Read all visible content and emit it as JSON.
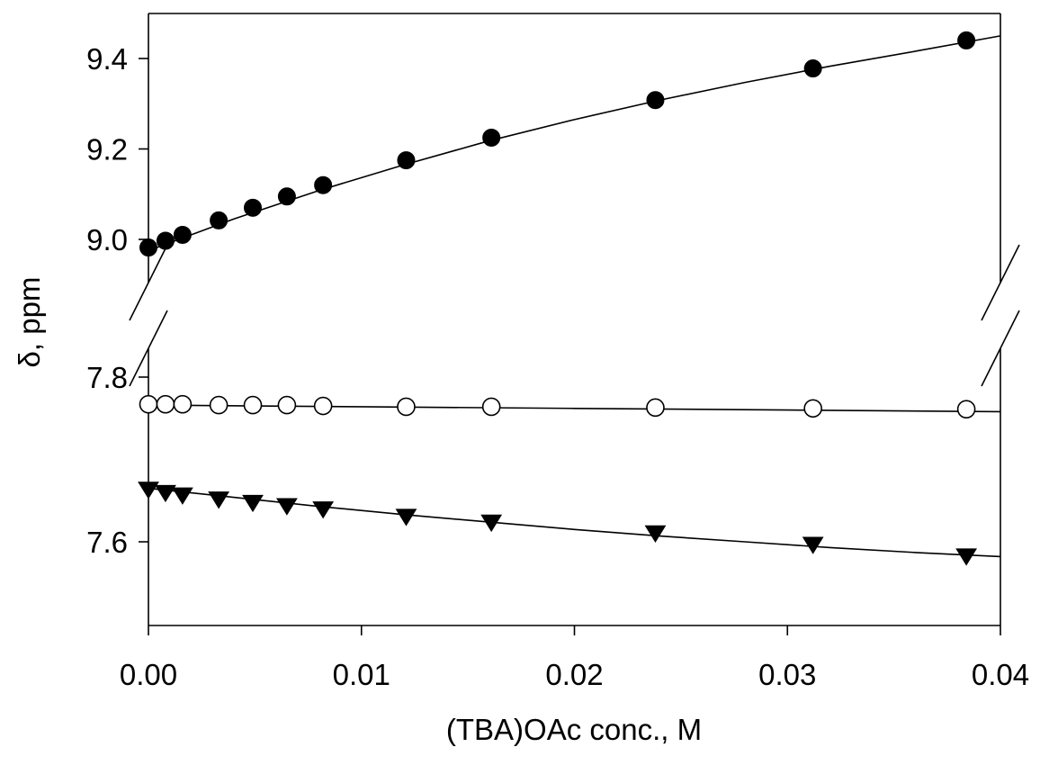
{
  "chart_data": {
    "type": "scatter",
    "xlabel": "(TBA)OAc conc., M",
    "ylabel": "δ, ppm",
    "xlim": [
      0.0,
      0.04
    ],
    "x_ticks": [
      "0.00",
      "0.01",
      "0.02",
      "0.03",
      "0.04"
    ],
    "y_broken_axis": true,
    "y_segments": [
      {
        "ylim": [
          8.9,
          9.47
        ],
        "ticks": [
          "9.0",
          "9.2",
          "9.4"
        ]
      },
      {
        "ylim": [
          7.49,
          7.86
        ],
        "ticks": [
          "7.6",
          "7.8"
        ]
      }
    ],
    "grid": false,
    "legend": "none",
    "x": [
      0.0,
      0.0008,
      0.0016,
      0.0033,
      0.0049,
      0.0065,
      0.0082,
      0.0121,
      0.0161,
      0.0238,
      0.0312,
      0.0384
    ],
    "series": [
      {
        "marker": "filled-circle",
        "values": [
          8.982,
          8.997,
          9.01,
          9.042,
          9.07,
          9.095,
          9.12,
          9.175,
          9.225,
          9.308,
          9.378,
          9.44
        ],
        "fit": [
          [
            0.0,
            8.975
          ],
          [
            0.004,
            9.045
          ],
          [
            0.008,
            9.108
          ],
          [
            0.012,
            9.165
          ],
          [
            0.016,
            9.218
          ],
          [
            0.02,
            9.265
          ],
          [
            0.024,
            9.308
          ],
          [
            0.028,
            9.347
          ],
          [
            0.032,
            9.383
          ],
          [
            0.036,
            9.416
          ],
          [
            0.04,
            9.45
          ]
        ]
      },
      {
        "marker": "open-circle",
        "values": [
          7.767,
          7.767,
          7.767,
          7.766,
          7.766,
          7.766,
          7.765,
          7.764,
          7.764,
          7.763,
          7.762,
          7.761
        ],
        "fit": [
          [
            0.0,
            7.766
          ],
          [
            0.01,
            7.764
          ],
          [
            0.02,
            7.762
          ],
          [
            0.03,
            7.76
          ],
          [
            0.04,
            7.758
          ]
        ]
      },
      {
        "marker": "filled-triangle-down",
        "values": [
          7.665,
          7.661,
          7.658,
          7.653,
          7.649,
          7.645,
          7.641,
          7.632,
          7.625,
          7.612,
          7.598,
          7.584
        ],
        "fit": [
          [
            0.0,
            7.665
          ],
          [
            0.004,
            7.654
          ],
          [
            0.008,
            7.643
          ],
          [
            0.012,
            7.633
          ],
          [
            0.016,
            7.624
          ],
          [
            0.02,
            7.615
          ],
          [
            0.024,
            7.607
          ],
          [
            0.028,
            7.6
          ],
          [
            0.032,
            7.593
          ],
          [
            0.036,
            7.587
          ],
          [
            0.04,
            7.582
          ]
        ]
      }
    ]
  }
}
